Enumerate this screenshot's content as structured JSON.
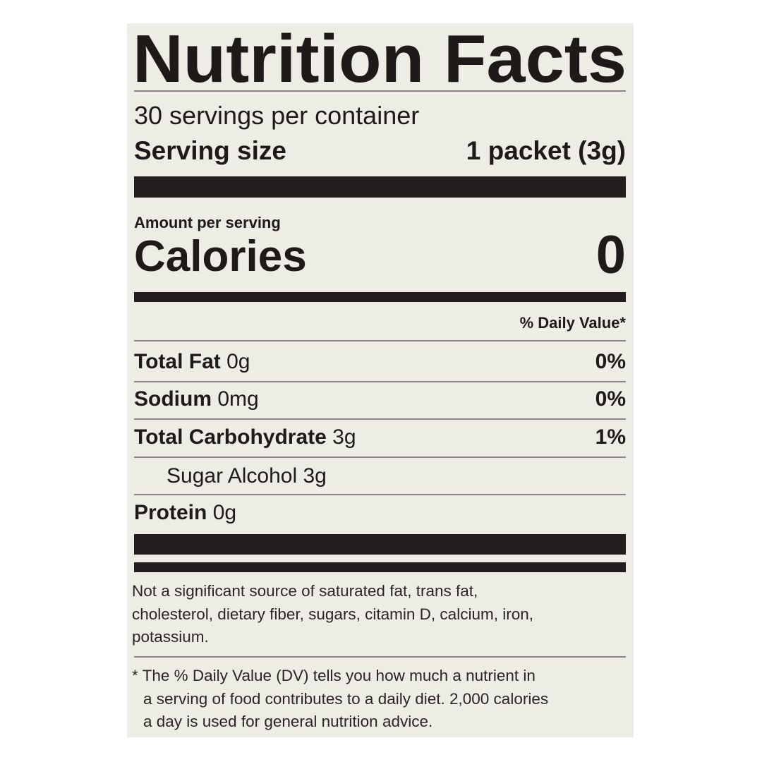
{
  "label": {
    "title": "Nutrition Facts",
    "servings_per_container": "30 servings per container",
    "serving_size_label": "Serving size",
    "serving_size_value": "1 packet (3g)",
    "amount_per_serving": "Amount per serving",
    "calories_label": "Calories",
    "calories_value": "0",
    "daily_value_header": "% Daily Value*",
    "nutrients": [
      {
        "name": "Total Fat",
        "amount": "0g",
        "dv": "0%"
      },
      {
        "name": "Sodium",
        "amount": "0mg",
        "dv": "0%"
      },
      {
        "name": "Total Carbohydrate",
        "amount": "3g",
        "dv": "1%"
      },
      {
        "name": "Sugar Alcohol 3g",
        "amount": "",
        "dv": ""
      },
      {
        "name": "Protein",
        "amount": "0g",
        "dv": ""
      }
    ],
    "not_significant": [
      "Not a significant source of saturated fat, trans fat,",
      "cholesterol, dietary fiber, sugars, citamin D, calcium, iron,",
      "potassium."
    ],
    "footnote": [
      "* The % Daily Value (DV) tells you how much a nutrient in",
      "a serving of food contributes to a daily diet. 2,000 calories",
      "a day is used for general nutrition advice."
    ]
  },
  "colors": {
    "panel": "#eeede5",
    "ink": "#231d1d"
  }
}
